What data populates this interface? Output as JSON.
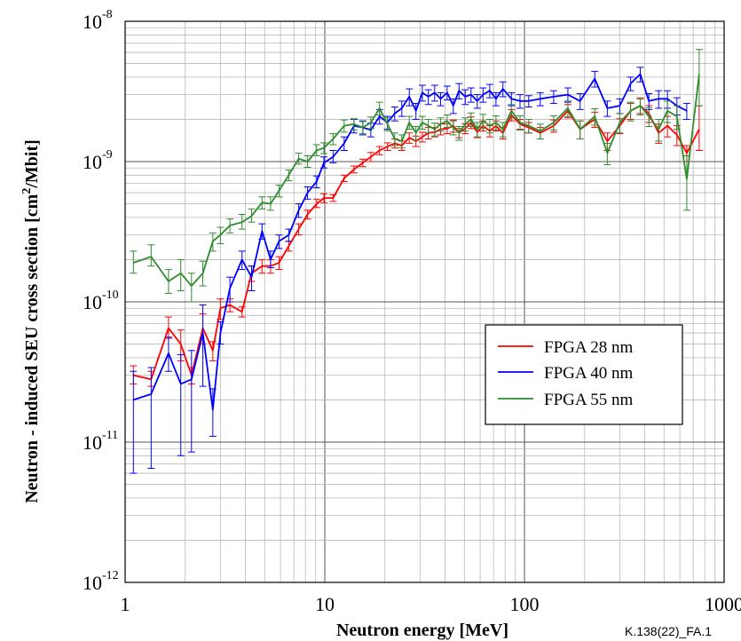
{
  "chart_data": {
    "type": "line",
    "xlabel": "Neutron energy [MeV]",
    "ylabel_parts": [
      "Neutron - induced SEU cross section [cm",
      "2",
      "/Mbit]"
    ],
    "xscale": "log",
    "yscale": "log",
    "xlim": [
      1,
      1000
    ],
    "ylim": [
      1e-12,
      1e-08
    ],
    "x_ticks": [
      {
        "value": 1,
        "label": "1"
      },
      {
        "value": 10,
        "label": "10"
      },
      {
        "value": 100,
        "label": "100"
      },
      {
        "value": 1000,
        "label": "1000"
      }
    ],
    "y_ticks": [
      {
        "value": 1e-12,
        "base": "10",
        "exp": "-12"
      },
      {
        "value": 1e-11,
        "base": "10",
        "exp": "-11"
      },
      {
        "value": 1e-10,
        "base": "10",
        "exp": "-10"
      },
      {
        "value": 1e-09,
        "base": "10",
        "exp": "-9"
      },
      {
        "value": 1e-08,
        "base": "10",
        "exp": "-8"
      }
    ],
    "grid": true,
    "legend_position": "center-right",
    "reference_code": "K.138(22)_FA.1",
    "series": [
      {
        "name": "FPGA 28 nm",
        "color": "#ff0000",
        "x": [
          1.1,
          1.35,
          1.65,
          1.9,
          2.15,
          2.45,
          2.75,
          3.0,
          3.35,
          3.85,
          4.3,
          4.85,
          5.35,
          5.9,
          6.6,
          7.4,
          8.2,
          9.1,
          9.9,
          11.0,
          12.5,
          14.0,
          15.5,
          17.0,
          18.8,
          20.6,
          22.4,
          24.3,
          26.5,
          28.6,
          30.8,
          33.0,
          35.5,
          38.0,
          41.0,
          44.0,
          47.0,
          50.5,
          54.0,
          58.0,
          62.0,
          67.0,
          72.0,
          78.0,
          86.0,
          95.0,
          105.0,
          120.0,
          140.0,
          165.0,
          190.0,
          225.0,
          260.0,
          300.0,
          340.0,
          380.0,
          420.0,
          470.0,
          520.0,
          580.0,
          650.0,
          750.0
        ],
        "values": [
          3e-11,
          2.8e-11,
          6.5e-11,
          5e-11,
          3e-11,
          6.5e-11,
          4.5e-11,
          9e-11,
          9.5e-11,
          8.5e-11,
          1.6e-10,
          1.8e-10,
          1.8e-10,
          1.9e-10,
          2.5e-10,
          3.3e-10,
          4.2e-10,
          5e-10,
          5.5e-10,
          5.5e-10,
          7.6e-10,
          8.8e-10,
          9.8e-10,
          1.08e-09,
          1.2e-09,
          1.28e-09,
          1.35e-09,
          1.3e-09,
          1.48e-09,
          1.4e-09,
          1.5e-09,
          1.6e-09,
          1.62e-09,
          1.7e-09,
          1.72e-09,
          1.8e-09,
          1.6e-09,
          1.72e-09,
          1.9e-09,
          1.62e-09,
          1.8e-09,
          1.65e-09,
          1.8e-09,
          1.6e-09,
          2.15e-09,
          1.85e-09,
          1.75e-09,
          1.6e-09,
          1.8e-09,
          2.3e-09,
          1.7e-09,
          2e-09,
          1.4e-09,
          1.8e-09,
          2.3e-09,
          2.5e-09,
          2.2e-09,
          1.6e-09,
          1.8e-09,
          1.55e-09,
          1.15e-09,
          1.7e-09
        ],
        "err_lo": [
          2.6e-11,
          2.5e-11,
          5.5e-11,
          3.8e-11,
          2.6e-11,
          5e-11,
          3.8e-11,
          7.5e-11,
          8.5e-11,
          7.8e-11,
          1.4e-10,
          1.6e-10,
          1.6e-10,
          1.7e-10,
          2.3e-10,
          3e-10,
          3.9e-10,
          4.7e-10,
          5.1e-10,
          5.2e-10,
          7.2e-10,
          8.3e-10,
          9.2e-10,
          1e-09,
          1.12e-09,
          1.2e-09,
          1.25e-09,
          1.2e-09,
          1.35e-09,
          1.28e-09,
          1.38e-09,
          1.45e-09,
          1.5e-09,
          1.55e-09,
          1.58e-09,
          1.62e-09,
          1.48e-09,
          1.58e-09,
          1.72e-09,
          1.48e-09,
          1.65e-09,
          1.5e-09,
          1.65e-09,
          1.45e-09,
          1.95e-09,
          1.7e-09,
          1.6e-09,
          1.45e-09,
          1.62e-09,
          2.05e-09,
          1.45e-09,
          1.75e-09,
          1.2e-09,
          1.58e-09,
          2e-09,
          2.2e-09,
          1.9e-09,
          1.35e-09,
          1.5e-09,
          1.3e-09,
          1e-09,
          1.2e-09
        ],
        "err_hi": [
          3.5e-11,
          3.2e-11,
          7.8e-11,
          6.3e-11,
          3.4e-11,
          8.2e-11,
          5.2e-11,
          1.05e-10,
          1.05e-10,
          9.2e-11,
          1.8e-10,
          2e-10,
          2e-10,
          2.1e-10,
          2.7e-10,
          3.6e-10,
          4.5e-10,
          5.4e-10,
          5.9e-10,
          5.8e-10,
          8e-10,
          9.3e-10,
          1.04e-09,
          1.16e-09,
          1.28e-09,
          1.36e-09,
          1.45e-09,
          1.4e-09,
          1.6e-09,
          1.52e-09,
          1.62e-09,
          1.75e-09,
          1.75e-09,
          1.85e-09,
          1.86e-09,
          1.98e-09,
          1.72e-09,
          1.86e-09,
          2.08e-09,
          1.76e-09,
          1.95e-09,
          1.8e-09,
          1.95e-09,
          1.75e-09,
          2.35e-09,
          2e-09,
          1.9e-09,
          1.75e-09,
          1.98e-09,
          2.55e-09,
          1.95e-09,
          2.25e-09,
          1.6e-09,
          2.02e-09,
          2.6e-09,
          2.8e-09,
          2.5e-09,
          1.85e-09,
          2.1e-09,
          1.8e-09,
          1.3e-09,
          2.5e-09
        ]
      },
      {
        "name": "FPGA 40 nm",
        "color": "#0000ff",
        "x": [
          1.1,
          1.35,
          1.65,
          1.9,
          2.15,
          2.45,
          2.75,
          3.0,
          3.35,
          3.85,
          4.3,
          4.85,
          5.35,
          5.9,
          6.6,
          7.4,
          8.2,
          9.1,
          9.9,
          11.0,
          12.5,
          14.0,
          15.5,
          17.0,
          18.8,
          20.6,
          22.4,
          24.3,
          26.5,
          28.6,
          30.8,
          33.0,
          35.5,
          38.0,
          41.0,
          44.0,
          47.0,
          50.5,
          54.0,
          58.0,
          62.0,
          67.0,
          72.0,
          78.0,
          86.0,
          95.0,
          105.0,
          120.0,
          140.0,
          165.0,
          190.0,
          225.0,
          260.0,
          300.0,
          340.0,
          380.0,
          420.0,
          470.0,
          520.0,
          580.0,
          650.0
        ],
        "values": [
          2e-11,
          2.2e-11,
          4.3e-11,
          2.6e-11,
          2.8e-11,
          6e-11,
          1.7e-11,
          6e-11,
          1.25e-10,
          2e-10,
          1.5e-10,
          3.2e-10,
          2e-10,
          2.7e-10,
          3e-10,
          4.5e-10,
          6e-10,
          7.2e-10,
          9.8e-10,
          1.08e-09,
          1.35e-09,
          1.8e-09,
          1.75e-09,
          1.68e-09,
          2.1e-09,
          1.9e-09,
          2.2e-09,
          2.4e-09,
          2.9e-09,
          2.3e-09,
          3.1e-09,
          2.9e-09,
          3.1e-09,
          2.8e-09,
          3.1e-09,
          2.5e-09,
          3.2e-09,
          2.9e-09,
          3e-09,
          2.7e-09,
          3e-09,
          3.2e-09,
          2.8e-09,
          3.3e-09,
          2.8e-09,
          2.7e-09,
          2.7e-09,
          2.8e-09,
          2.9e-09,
          3e-09,
          2.7e-09,
          3.9e-09,
          2.4e-09,
          2.5e-09,
          3.6e-09,
          4.2e-09,
          2.7e-09,
          2.8e-09,
          2.8e-09,
          2.5e-09,
          2.3e-09
        ],
        "err_lo": [
          6e-12,
          6.5e-12,
          3.2e-11,
          8e-12,
          8.5e-12,
          2.5e-11,
          1.1e-11,
          5e-11,
          1e-10,
          1.7e-10,
          1.2e-10,
          2.8e-10,
          1.75e-10,
          2.4e-10,
          2.7e-10,
          4e-10,
          5.4e-10,
          6.5e-10,
          9e-10,
          9.8e-10,
          1.2e-09,
          1.6e-09,
          1.55e-09,
          1.5e-09,
          1.85e-09,
          1.7e-09,
          1.95e-09,
          2.1e-09,
          2.5e-09,
          2e-09,
          2.7e-09,
          2.55e-09,
          2.7e-09,
          2.5e-09,
          2.75e-09,
          2.2e-09,
          2.8e-09,
          2.55e-09,
          2.65e-09,
          2.4e-09,
          2.65e-09,
          2.85e-09,
          2.5e-09,
          2.9e-09,
          2.5e-09,
          2.4e-09,
          2.45e-09,
          2.5e-09,
          2.6e-09,
          2.65e-09,
          2.35e-09,
          3.4e-09,
          2.1e-09,
          2.2e-09,
          3.2e-09,
          3.7e-09,
          2.35e-09,
          2.4e-09,
          2.4e-09,
          2.15e-09,
          2e-09
        ],
        "err_hi": [
          3.2e-11,
          3.4e-11,
          5.6e-11,
          4.2e-11,
          4.5e-11,
          9.5e-11,
          2.4e-11,
          7.2e-11,
          1.5e-10,
          2.3e-10,
          1.8e-10,
          3.6e-10,
          2.3e-10,
          3e-10,
          3.3e-10,
          5e-10,
          6.6e-10,
          7.9e-10,
          1.08e-09,
          1.2e-09,
          1.5e-09,
          2e-09,
          1.95e-09,
          1.88e-09,
          2.35e-09,
          2.1e-09,
          2.45e-09,
          2.7e-09,
          3.3e-09,
          2.6e-09,
          3.5e-09,
          3.25e-09,
          3.5e-09,
          3.1e-09,
          3.45e-09,
          2.8e-09,
          3.6e-09,
          3.25e-09,
          3.35e-09,
          3e-09,
          3.35e-09,
          3.55e-09,
          3.1e-09,
          3.7e-09,
          3.1e-09,
          3e-09,
          2.95e-09,
          3.1e-09,
          3.2e-09,
          3.35e-09,
          3.05e-09,
          4.4e-09,
          2.7e-09,
          2.8e-09,
          4e-09,
          4.7e-09,
          3.05e-09,
          3.2e-09,
          3.2e-09,
          2.85e-09,
          2.6e-09
        ]
      },
      {
        "name": "FPGA 55 nm",
        "color": "#2e8b2e",
        "x": [
          1.1,
          1.35,
          1.65,
          1.9,
          2.15,
          2.45,
          2.75,
          3.0,
          3.35,
          3.85,
          4.3,
          4.85,
          5.35,
          5.9,
          6.6,
          7.4,
          8.2,
          9.1,
          9.9,
          11.0,
          12.5,
          14.0,
          15.5,
          17.0,
          18.8,
          20.6,
          22.4,
          24.3,
          26.5,
          28.6,
          30.8,
          33.0,
          35.5,
          38.0,
          41.0,
          44.0,
          47.0,
          50.5,
          54.0,
          58.0,
          62.0,
          67.0,
          72.0,
          78.0,
          86.0,
          95.0,
          105.0,
          120.0,
          140.0,
          165.0,
          190.0,
          225.0,
          260.0,
          300.0,
          340.0,
          380.0,
          420.0,
          470.0,
          520.0,
          580.0,
          650.0,
          750.0
        ],
        "values": [
          1.9e-10,
          2.1e-10,
          1.4e-10,
          1.6e-10,
          1.3e-10,
          1.6e-10,
          2.7e-10,
          3e-10,
          3.5e-10,
          3.7e-10,
          4.1e-10,
          5.1e-10,
          5e-10,
          6.2e-10,
          8e-10,
          1.05e-09,
          1e-09,
          1.2e-09,
          1.25e-09,
          1.45e-09,
          1.8e-09,
          1.85e-09,
          1.75e-09,
          1.9e-09,
          2.4e-09,
          1.85e-09,
          1.45e-09,
          1.4e-09,
          1.9e-09,
          1.6e-09,
          1.9e-09,
          1.8e-09,
          1.7e-09,
          1.85e-09,
          1.95e-09,
          1.75e-09,
          1.6e-09,
          1.85e-09,
          2e-09,
          1.7e-09,
          1.95e-09,
          1.8e-09,
          1.9e-09,
          1.7e-09,
          2.3e-09,
          1.9e-09,
          1.8e-09,
          1.65e-09,
          1.9e-09,
          2.4e-09,
          1.7e-09,
          2.1e-09,
          1.15e-09,
          1.9e-09,
          2.3e-09,
          2.5e-09,
          2.1e-09,
          1.7e-09,
          2.3e-09,
          2.1e-09,
          7.5e-10,
          4.2e-09
        ],
        "err_lo": [
          1.6e-10,
          1.8e-10,
          1.15e-10,
          1.2e-10,
          1e-10,
          1.3e-10,
          2.3e-10,
          2.6e-10,
          3.1e-10,
          3.3e-10,
          3.7e-10,
          4.6e-10,
          4.5e-10,
          5.6e-10,
          7.3e-10,
          9.6e-10,
          9.1e-10,
          1.1e-09,
          1.14e-09,
          1.32e-09,
          1.62e-09,
          1.68e-09,
          1.58e-09,
          1.72e-09,
          2.15e-09,
          1.66e-09,
          1.3e-09,
          1.25e-09,
          1.7e-09,
          1.42e-09,
          1.7e-09,
          1.6e-09,
          1.52e-09,
          1.65e-09,
          1.75e-09,
          1.55e-09,
          1.42e-09,
          1.65e-09,
          1.78e-09,
          1.5e-09,
          1.73e-09,
          1.6e-09,
          1.68e-09,
          1.5e-09,
          2.05e-09,
          1.68e-09,
          1.6e-09,
          1.45e-09,
          1.68e-09,
          2.1e-09,
          1.45e-09,
          1.82e-09,
          9.5e-10,
          1.6e-09,
          1.95e-09,
          2.15e-09,
          1.78e-09,
          1.4e-09,
          1.9e-09,
          1.7e-09,
          4.5e-10,
          2.5e-09
        ],
        "err_hi": [
          2.3e-10,
          2.55e-10,
          1.7e-10,
          2e-10,
          1.6e-10,
          1.95e-10,
          3.1e-10,
          3.4e-10,
          3.9e-10,
          4.2e-10,
          4.6e-10,
          5.6e-10,
          5.6e-10,
          6.8e-10,
          8.7e-10,
          1.15e-09,
          1.1e-09,
          1.32e-09,
          1.36e-09,
          1.58e-09,
          1.98e-09,
          2.02e-09,
          1.93e-09,
          2.08e-09,
          2.65e-09,
          2.05e-09,
          1.6e-09,
          1.55e-09,
          2.1e-09,
          1.78e-09,
          2.1e-09,
          2e-09,
          1.88e-09,
          2.05e-09,
          2.15e-09,
          1.95e-09,
          1.78e-09,
          2.05e-09,
          2.22e-09,
          1.9e-09,
          2.17e-09,
          2e-09,
          2.12e-09,
          1.9e-09,
          2.55e-09,
          2.12e-09,
          2e-09,
          1.85e-09,
          2.12e-09,
          2.7e-09,
          1.95e-09,
          2.38e-09,
          1.35e-09,
          2.2e-09,
          2.65e-09,
          2.85e-09,
          2.42e-09,
          2e-09,
          2.7e-09,
          2.5e-09,
          1.1e-09,
          6.3e-09
        ]
      }
    ]
  }
}
